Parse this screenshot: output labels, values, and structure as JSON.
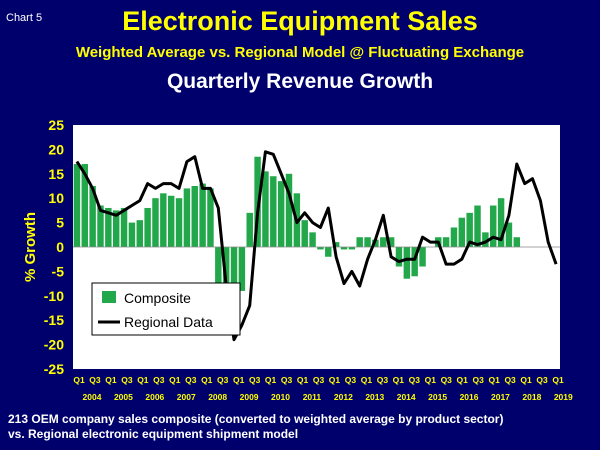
{
  "header": {
    "chart_label": "Chart 5",
    "title": "Electronic Equipment Sales",
    "subtitle": "Weighted Average vs. Regional Model @ Fluctuating Exchange",
    "subtitle2": "Quarterly Revenue Growth"
  },
  "footnote": {
    "line1": "213 OEM company sales composite (converted to weighted average by product sector)",
    "line2": "vs. Regional electronic equipment shipment model"
  },
  "colors": {
    "background": "#00006d",
    "plot_background": "#ffffff",
    "bar": "#22a84a",
    "line": "#000000",
    "title": "#ffff00",
    "axis_text": "#ffff00"
  },
  "chart_data": {
    "type": "bar",
    "ylabel": "% Growth",
    "ylim": [
      -25,
      25
    ],
    "y_ticks": [
      25,
      20,
      15,
      10,
      5,
      0,
      -5,
      -10,
      -15,
      -20,
      -25
    ],
    "grid": false,
    "legend_placement": "lower-left",
    "quarter_labels": [
      "Q1",
      "Q3",
      "Q1",
      "Q3",
      "Q1",
      "Q3",
      "Q1",
      "Q3",
      "Q1",
      "Q3",
      "Q1",
      "Q3",
      "Q1",
      "Q3",
      "Q1",
      "Q3",
      "Q1",
      "Q3",
      "Q1",
      "Q3",
      "Q1",
      "Q3",
      "Q1",
      "Q3",
      "Q1",
      "Q3",
      "Q1",
      "Q3",
      "Q1",
      "Q3",
      "Q1"
    ],
    "year_labels": [
      "2004",
      "2005",
      "2006",
      "2007",
      "2008",
      "2009",
      "2010",
      "2011",
      "2012",
      "2013",
      "2014",
      "2015",
      "2016",
      "2017",
      "2018",
      "2019"
    ],
    "series": [
      {
        "name": "Composite",
        "kind": "bar",
        "values": [
          17,
          17,
          12.5,
          8.5,
          8,
          7.5,
          8,
          5,
          5.5,
          8,
          10,
          11,
          10.5,
          10,
          12,
          12.5,
          13,
          12,
          -10,
          -16,
          -15,
          -9,
          7,
          18.5,
          15.5,
          14.5,
          13.5,
          15,
          11,
          5.5,
          3,
          -0.5,
          -2,
          1,
          -0.5,
          -0.5,
          2,
          2,
          1.5,
          2,
          2,
          -4,
          -6.5,
          -6,
          -4,
          0,
          2,
          2,
          4,
          6,
          7,
          8.5,
          3,
          8.5,
          10,
          5,
          2
        ]
      },
      {
        "name": "Regional Data",
        "kind": "line",
        "values": [
          17.5,
          15,
          12,
          7.5,
          7,
          6.5,
          7.5,
          8.5,
          9.5,
          13,
          12,
          13,
          13,
          12,
          17.5,
          18.5,
          12,
          12,
          8,
          -8,
          -19,
          -16,
          -12,
          7,
          19.5,
          19,
          15,
          11,
          5,
          7,
          5,
          4,
          8,
          -2,
          -7.5,
          -5,
          -8,
          -2.5,
          1.5,
          6.5,
          -2,
          -3,
          -2.5,
          -2.5,
          2,
          1,
          1,
          -3.5,
          -3.5,
          -2.5,
          1,
          0.5,
          1,
          2,
          1.5,
          6.5,
          17,
          13,
          14,
          9.5,
          1,
          -3.5
        ]
      }
    ]
  }
}
